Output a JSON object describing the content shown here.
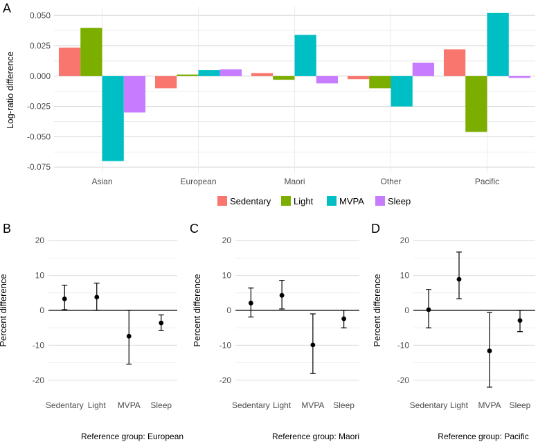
{
  "chart_data": [
    {
      "panel": "A",
      "type": "bar",
      "ylabel": "Log-ratio difference",
      "xlabel": "",
      "ylim": [
        -0.08,
        0.057
      ],
      "yticks": [
        -0.075,
        -0.05,
        -0.025,
        0.0,
        0.025,
        0.05
      ],
      "ytick_labels": [
        "-0.075",
        "-0.050",
        "-0.025",
        "0.000",
        "0.025",
        "0.050"
      ],
      "grid": true,
      "categories": [
        "Asian",
        "European",
        "Maori",
        "Other",
        "Pacific"
      ],
      "legend_position": "bottom",
      "series": [
        {
          "name": "Sedentary",
          "color": "#F8766D",
          "values": [
            0.0235,
            -0.01,
            0.0025,
            -0.0025,
            0.022
          ]
        },
        {
          "name": "Light",
          "color": "#7CAE00",
          "values": [
            0.0398,
            0.0013,
            -0.003,
            -0.01,
            -0.046
          ]
        },
        {
          "name": "MVPA",
          "color": "#00BFC4",
          "values": [
            -0.07,
            0.005,
            0.034,
            -0.025,
            0.052
          ]
        },
        {
          "name": "Sleep",
          "color": "#C77CFF",
          "values": [
            -0.03,
            0.0055,
            -0.006,
            0.011,
            -0.0015
          ]
        }
      ]
    },
    {
      "panel": "B",
      "type": "scatter",
      "ylabel": "Percent difference",
      "ylim": [
        -25,
        25
      ],
      "yticks": [
        -20,
        -10,
        0,
        10,
        20
      ],
      "ytick_labels": [
        "-20",
        "-10",
        "0",
        "10",
        "20"
      ],
      "grid": true,
      "categories": [
        "Sedentary",
        "Light",
        "MVPA",
        "Sleep"
      ],
      "estimate": [
        3.3,
        3.8,
        -7.4,
        -3.6
      ],
      "lower": [
        0.2,
        0.0,
        -15.4,
        -5.8
      ],
      "upper": [
        7.2,
        7.8,
        0.0,
        -1.3
      ],
      "caption": "Reference group: European"
    },
    {
      "panel": "C",
      "type": "scatter",
      "ylabel": "Percent difference",
      "ylim": [
        -25,
        25
      ],
      "yticks": [
        -20,
        -10,
        0,
        10,
        20
      ],
      "ytick_labels": [
        "-20",
        "-10",
        "0",
        "10",
        "20"
      ],
      "grid": true,
      "categories": [
        "Sedentary",
        "Light",
        "MVPA",
        "Sleep"
      ],
      "estimate": [
        2.1,
        4.3,
        -9.9,
        -2.4
      ],
      "lower": [
        -1.9,
        0.4,
        -18.1,
        -5.0
      ],
      "upper": [
        6.4,
        8.6,
        -1.0,
        0.0
      ],
      "caption": "Reference group: Maori"
    },
    {
      "panel": "D",
      "type": "scatter",
      "ylabel": "Percent difference",
      "ylim": [
        -25,
        25
      ],
      "yticks": [
        -20,
        -10,
        0,
        10,
        20
      ],
      "ytick_labels": [
        "-20",
        "-10",
        "0",
        "10",
        "20"
      ],
      "grid": true,
      "categories": [
        "Sedentary",
        "Light",
        "MVPA",
        "Sleep"
      ],
      "estimate": [
        0.2,
        8.9,
        -11.6,
        -2.9
      ],
      "lower": [
        -5.0,
        3.3,
        -22.0,
        -6.1
      ],
      "upper": [
        6.0,
        16.7,
        -0.6,
        0.0
      ],
      "caption": "Reference group: Pacific"
    }
  ]
}
